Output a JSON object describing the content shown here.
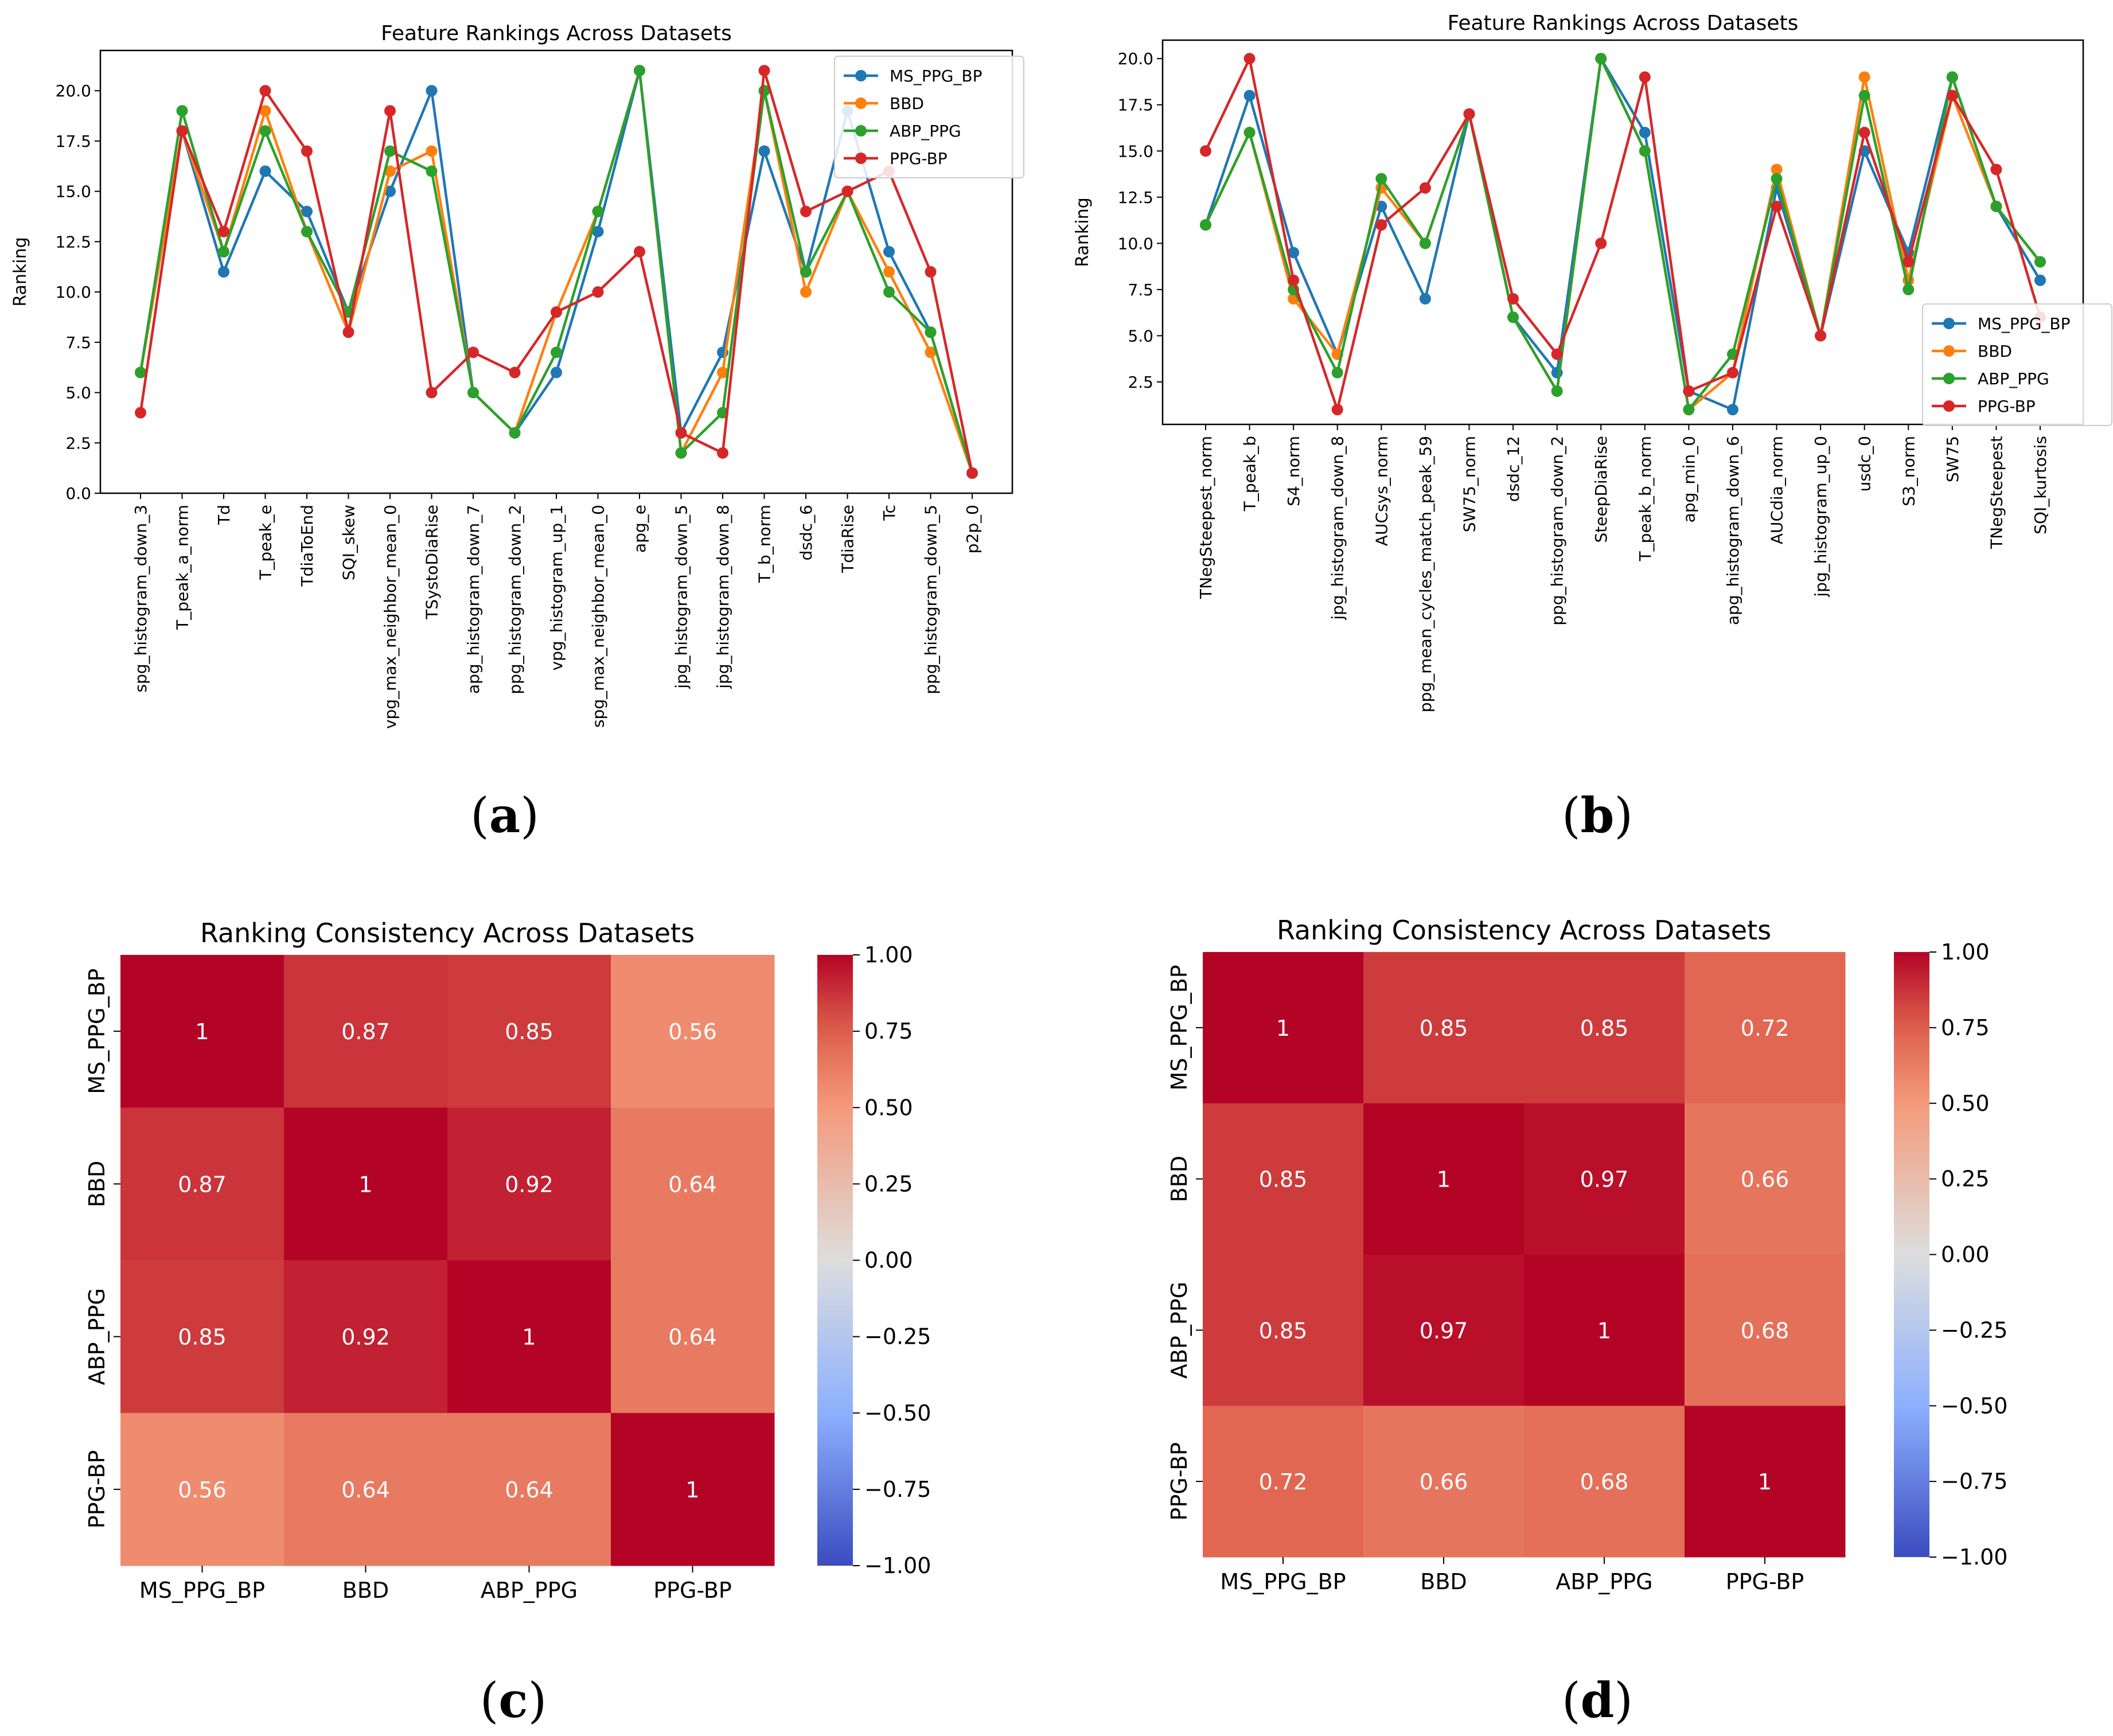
{
  "panels": [
    {
      "letter": "a",
      "chart_data": {
        "type": "line",
        "title": "Feature Rankings Across Datasets",
        "xlabel": "",
        "ylabel": "Ranking",
        "ylim": [
          0,
          22
        ],
        "yticks": [
          0.0,
          2.5,
          5.0,
          7.5,
          10.0,
          12.5,
          15.0,
          17.5,
          20.0
        ],
        "legend_position": "top-right",
        "grid": false,
        "categories": [
          "spg_histogram_down_3",
          "T_peak_a_norm",
          "Td",
          "T_peak_e",
          "TdiaToEnd",
          "SQI_skew",
          "vpg_max_neighbor_mean_0",
          "TSystoDiaRise",
          "apg_histogram_down_7",
          "ppg_histogram_down_2",
          "vpg_histogram_up_1",
          "spg_max_neighbor_mean_0",
          "apg_e",
          "jpg_histogram_down_5",
          "jpg_histogram_down_8",
          "T_b_norm",
          "dsdc_6",
          "TdiaRise",
          "Tc",
          "ppg_histogram_down_5",
          "p2p_0"
        ],
        "series": [
          {
            "name": "MS_PPG_BP",
            "color": "#1f77b4",
            "values": [
              6,
              18,
              11,
              16,
              14,
              9,
              15,
              20,
              5,
              3,
              6,
              13,
              21,
              3,
              7,
              17,
              11,
              19,
              12,
              8,
              1
            ]
          },
          {
            "name": "BBD",
            "color": "#ff7f0e",
            "values": [
              6,
              18,
              12,
              19,
              13,
              8,
              16,
              17,
              5,
              3,
              9,
              14,
              21,
              2,
              6,
              20,
              10,
              15,
              11,
              7,
              1
            ]
          },
          {
            "name": "ABP_PPG",
            "color": "#2ca02c",
            "values": [
              6,
              19,
              12,
              18,
              13,
              9,
              17,
              16,
              5,
              3,
              7,
              14,
              21,
              2,
              4,
              20,
              11,
              15,
              10,
              8,
              1
            ]
          },
          {
            "name": "PPG-BP",
            "color": "#d62728",
            "values": [
              4,
              18,
              13,
              20,
              17,
              8,
              19,
              5,
              7,
              6,
              9,
              10,
              12,
              3,
              2,
              21,
              14,
              15,
              16,
              11,
              1
            ]
          }
        ]
      }
    },
    {
      "letter": "b",
      "chart_data": {
        "type": "line",
        "title": "Feature Rankings Across Datasets",
        "xlabel": "",
        "ylabel": "Ranking",
        "ylim": [
          0.2,
          21
        ],
        "yticks": [
          2.5,
          5.0,
          7.5,
          10.0,
          12.5,
          15.0,
          17.5,
          20.0
        ],
        "legend_position": "lower-right",
        "grid": false,
        "categories": [
          "TNegSteepest_norm",
          "T_peak_b",
          "S4_norm",
          "jpg_histogram_down_8",
          "AUCsys_norm",
          "ppg_mean_cycles_match_peak_59",
          "SW75_norm",
          "dsdc_12",
          "ppg_histogram_down_2",
          "SteepDiaRise",
          "T_peak_b_norm",
          "apg_min_0",
          "apg_histogram_down_6",
          "AUCdia_norm",
          "jpg_histogram_up_0",
          "usdc_0",
          "S3_norm",
          "SW75",
          "TNegSteepest",
          "SQI_kurtosis"
        ],
        "series": [
          {
            "name": "MS_PPG_BP",
            "color": "#1f77b4",
            "values": [
              11,
              18,
              9.5,
              4,
              12,
              7,
              17,
              6,
              3,
              20,
              16,
              2,
              1,
              13,
              5,
              15,
              9.5,
              19,
              12,
              8
            ]
          },
          {
            "name": "BBD",
            "color": "#ff7f0e",
            "values": [
              11,
              16,
              7,
              4,
              13,
              10,
              17,
              6,
              2,
              20,
              15,
              1,
              3,
              14,
              5,
              19,
              8,
              18,
              12,
              9
            ]
          },
          {
            "name": "ABP_PPG",
            "color": "#2ca02c",
            "values": [
              11,
              16,
              7.5,
              3,
              13.5,
              10,
              17,
              6,
              2,
              20,
              15,
              1,
              4,
              13.5,
              5,
              18,
              7.5,
              19,
              12,
              9
            ]
          },
          {
            "name": "PPG-BP",
            "color": "#d62728",
            "values": [
              15,
              20,
              8,
              1,
              11,
              13,
              17,
              7,
              4,
              10,
              19,
              2,
              3,
              12,
              5,
              16,
              9,
              18,
              14,
              6
            ]
          }
        ]
      }
    },
    {
      "letter": "c",
      "chart_data": {
        "type": "heatmap",
        "title": "Ranking Consistency Across Datasets",
        "labels": [
          "MS_PPG_BP",
          "BBD",
          "ABP_PPG",
          "PPG-BP"
        ],
        "matrix": [
          [
            1,
            0.87,
            0.85,
            0.56
          ],
          [
            0.87,
            1,
            0.92,
            0.64
          ],
          [
            0.85,
            0.92,
            1,
            0.64
          ],
          [
            0.56,
            0.64,
            0.64,
            1
          ]
        ],
        "cell_text": [
          [
            "1",
            "0.87",
            "0.85",
            "0.56"
          ],
          [
            "0.87",
            "1",
            "0.92",
            "0.64"
          ],
          [
            "0.85",
            "0.92",
            "1",
            "0.64"
          ],
          [
            "0.56",
            "0.64",
            "0.64",
            "1"
          ]
        ],
        "colorbar_range": [
          -1,
          1
        ],
        "colorbar_ticks": [
          "1.00",
          "0.75",
          "0.50",
          "0.25",
          "0.00",
          "−0.25",
          "−0.50",
          "−0.75",
          "−1.00"
        ],
        "colormap": "coolwarm"
      }
    },
    {
      "letter": "d",
      "chart_data": {
        "type": "heatmap",
        "title": "Ranking Consistency Across Datasets",
        "labels": [
          "MS_PPG_BP",
          "BBD",
          "ABP_PPG",
          "PPG-BP"
        ],
        "matrix": [
          [
            1,
            0.85,
            0.85,
            0.72
          ],
          [
            0.85,
            1,
            0.97,
            0.66
          ],
          [
            0.85,
            0.97,
            1,
            0.68
          ],
          [
            0.72,
            0.66,
            0.68,
            1
          ]
        ],
        "cell_text": [
          [
            "1",
            "0.85",
            "0.85",
            "0.72"
          ],
          [
            "0.85",
            "1",
            "0.97",
            "0.66"
          ],
          [
            "0.85",
            "0.97",
            "1",
            "0.68"
          ],
          [
            "0.72",
            "0.66",
            "0.68",
            "1"
          ]
        ],
        "colorbar_range": [
          -1,
          1
        ],
        "colorbar_ticks": [
          "1.00",
          "0.75",
          "0.50",
          "0.25",
          "0.00",
          "−0.25",
          "−0.50",
          "−0.75",
          "−1.00"
        ],
        "colormap": "coolwarm"
      }
    }
  ]
}
